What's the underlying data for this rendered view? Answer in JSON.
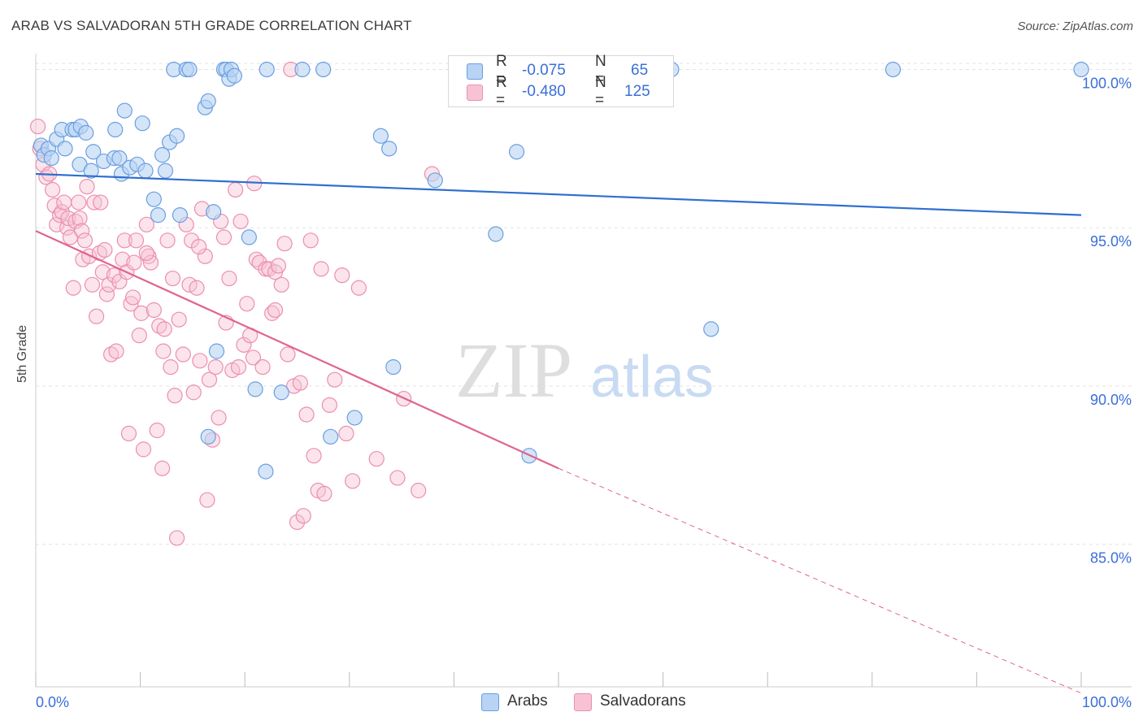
{
  "title": "ARAB VS SALVADORAN 5TH GRADE CORRELATION CHART",
  "source": "Source: ZipAtlas.com",
  "watermark": {
    "zip": "ZIP",
    "atlas": "atlas"
  },
  "colors": {
    "arabs": "#6b9ee0",
    "arabs_fill": "#b8d3f4",
    "arabs_line": "#2f6fd0",
    "salvadorans": "#ec8fad",
    "salvadorans_fill": "#f7c3d4",
    "salvadorans_line": "#e0648e",
    "tick_text": "#3a6fd8",
    "grid": "#e3e3e3"
  },
  "legend": {
    "r_label": "R =",
    "n_label": "N =",
    "rows": [
      {
        "r": "-0.075",
        "n": "65"
      },
      {
        "r": "-0.480",
        "n": "125"
      }
    ]
  },
  "bottom_legend": {
    "arabs": "Arabs",
    "salvadorans": "Salvadorans"
  },
  "chart_data": {
    "type": "scatter",
    "xlabel": "",
    "ylabel": "5th Grade",
    "xlim": [
      0,
      100
    ],
    "ylim": [
      80.5,
      100.5
    ],
    "x_tick_labels": {
      "min": "0.0%",
      "max": "100.0%"
    },
    "y_ticks": [
      85,
      90,
      95,
      100
    ],
    "y_tick_labels": [
      "85.0%",
      "90.0%",
      "95.0%",
      "100.0%"
    ],
    "grid": true,
    "series": [
      {
        "name": "Arabs",
        "r": -0.075,
        "n": 65,
        "trend": {
          "x0": 0,
          "y0": 96.7,
          "x1": 100,
          "y1": 95.4
        },
        "points": [
          [
            0.5,
            97.6
          ],
          [
            0.8,
            97.3
          ],
          [
            1.2,
            97.5
          ],
          [
            1.5,
            97.2
          ],
          [
            2,
            97.8
          ],
          [
            2.5,
            98.1
          ],
          [
            2.8,
            97.5
          ],
          [
            3.5,
            98.1
          ],
          [
            3.8,
            98.1
          ],
          [
            4.3,
            98.2
          ],
          [
            4.2,
            97.0
          ],
          [
            4.8,
            98.0
          ],
          [
            5.5,
            97.4
          ],
          [
            5.3,
            96.8
          ],
          [
            6.5,
            97.1
          ],
          [
            7.6,
            98.1
          ],
          [
            7.5,
            97.2
          ],
          [
            8,
            97.2
          ],
          [
            8.2,
            96.7
          ],
          [
            8.5,
            98.7
          ],
          [
            9,
            96.9
          ],
          [
            9.7,
            97.0
          ],
          [
            10.2,
            98.3
          ],
          [
            10.5,
            96.8
          ],
          [
            11.3,
            95.9
          ],
          [
            11.7,
            95.4
          ],
          [
            12.1,
            97.3
          ],
          [
            12.4,
            96.8
          ],
          [
            12.8,
            97.7
          ],
          [
            13.2,
            100.0
          ],
          [
            13.5,
            97.9
          ],
          [
            13.8,
            95.4
          ],
          [
            14.4,
            100.0
          ],
          [
            14.7,
            100.0
          ],
          [
            16.2,
            98.8
          ],
          [
            16.5,
            99.0
          ],
          [
            17,
            95.5
          ],
          [
            17.3,
            91.1
          ],
          [
            18,
            100.0
          ],
          [
            18.2,
            100.0
          ],
          [
            18.5,
            99.7
          ],
          [
            18.7,
            100.0
          ],
          [
            19,
            99.8
          ],
          [
            20.4,
            94.7
          ],
          [
            21,
            89.9
          ],
          [
            22.1,
            100.0
          ],
          [
            22,
            87.3
          ],
          [
            23.5,
            89.8
          ],
          [
            25.5,
            100.0
          ],
          [
            27.5,
            100.0
          ],
          [
            28.2,
            88.4
          ],
          [
            30.5,
            89.0
          ],
          [
            33,
            97.9
          ],
          [
            33.8,
            97.5
          ],
          [
            34.2,
            90.6
          ],
          [
            38.2,
            96.5
          ],
          [
            44,
            94.8
          ],
          [
            46,
            97.4
          ],
          [
            47.2,
            87.8
          ],
          [
            47.5,
            100.0
          ],
          [
            60.8,
            100.0
          ],
          [
            64.6,
            91.8
          ],
          [
            82,
            100.0
          ],
          [
            100,
            100.0
          ],
          [
            16.5,
            88.4
          ]
        ]
      },
      {
        "name": "Salvadorans",
        "r": -0.48,
        "n": 125,
        "trend": {
          "x0": 0,
          "y0": 94.9,
          "x1": 50,
          "y1": 87.4
        },
        "trend_extension": {
          "x0": 50,
          "y0": 87.4,
          "x1": 100,
          "y1": 80.3
        },
        "points": [
          [
            0.2,
            98.2
          ],
          [
            0.4,
            97.5
          ],
          [
            0.7,
            97.0
          ],
          [
            1,
            96.6
          ],
          [
            1.3,
            96.7
          ],
          [
            1.6,
            96.2
          ],
          [
            1.8,
            95.7
          ],
          [
            2,
            95.1
          ],
          [
            2.3,
            95.4
          ],
          [
            2.5,
            95.5
          ],
          [
            2.7,
            95.8
          ],
          [
            3,
            95.0
          ],
          [
            3.1,
            95.3
          ],
          [
            3.3,
            94.7
          ],
          [
            3.6,
            93.1
          ],
          [
            3.8,
            95.2
          ],
          [
            4.1,
            95.8
          ],
          [
            4.2,
            95.3
          ],
          [
            4.4,
            94.9
          ],
          [
            4.5,
            94.0
          ],
          [
            4.7,
            94.6
          ],
          [
            5.1,
            94.1
          ],
          [
            5.4,
            93.2
          ],
          [
            5.6,
            95.8
          ],
          [
            5.8,
            92.2
          ],
          [
            6.1,
            94.2
          ],
          [
            6.4,
            93.6
          ],
          [
            6.6,
            94.3
          ],
          [
            6.8,
            92.9
          ],
          [
            7,
            93.2
          ],
          [
            7.2,
            91.0
          ],
          [
            7.5,
            93.5
          ],
          [
            7.7,
            91.1
          ],
          [
            8,
            93.3
          ],
          [
            8.3,
            94.0
          ],
          [
            8.5,
            94.6
          ],
          [
            8.7,
            93.6
          ],
          [
            8.9,
            88.5
          ],
          [
            9.1,
            92.6
          ],
          [
            9.4,
            93.9
          ],
          [
            9.6,
            94.6
          ],
          [
            9.9,
            91.6
          ],
          [
            10.1,
            92.3
          ],
          [
            10.3,
            88.0
          ],
          [
            10.6,
            95.1
          ],
          [
            10.8,
            94.1
          ],
          [
            11,
            93.9
          ],
          [
            11.3,
            92.4
          ],
          [
            11.6,
            88.6
          ],
          [
            11.8,
            91.9
          ],
          [
            12.1,
            87.4
          ],
          [
            12.3,
            91.8
          ],
          [
            12.6,
            94.6
          ],
          [
            12.9,
            90.6
          ],
          [
            13.1,
            93.4
          ],
          [
            13.3,
            89.7
          ],
          [
            13.5,
            85.2
          ],
          [
            13.7,
            92.1
          ],
          [
            14.1,
            91.0
          ],
          [
            14.4,
            95.1
          ],
          [
            14.7,
            93.2
          ],
          [
            14.9,
            94.6
          ],
          [
            15.1,
            89.8
          ],
          [
            15.4,
            93.1
          ],
          [
            15.7,
            90.8
          ],
          [
            15.9,
            95.6
          ],
          [
            16.2,
            94.1
          ],
          [
            16.4,
            86.4
          ],
          [
            16.6,
            90.2
          ],
          [
            16.9,
            88.3
          ],
          [
            17.2,
            90.6
          ],
          [
            17.5,
            89.0
          ],
          [
            17.7,
            95.2
          ],
          [
            18,
            94.7
          ],
          [
            18.2,
            92.0
          ],
          [
            18.5,
            93.4
          ],
          [
            18.8,
            90.5
          ],
          [
            19.1,
            96.2
          ],
          [
            19.4,
            90.6
          ],
          [
            19.6,
            95.2
          ],
          [
            19.9,
            91.3
          ],
          [
            20.2,
            92.6
          ],
          [
            20.5,
            91.6
          ],
          [
            20.8,
            90.9
          ],
          [
            21.1,
            94.0
          ],
          [
            21.4,
            93.9
          ],
          [
            21.7,
            90.6
          ],
          [
            22,
            93.7
          ],
          [
            22.3,
            93.7
          ],
          [
            22.6,
            92.3
          ],
          [
            22.9,
            93.6
          ],
          [
            23.2,
            93.8
          ],
          [
            23.5,
            93.2
          ],
          [
            23.8,
            94.5
          ],
          [
            24.1,
            91.0
          ],
          [
            24.4,
            100.0
          ],
          [
            24.7,
            90.0
          ],
          [
            25,
            85.7
          ],
          [
            25.3,
            90.1
          ],
          [
            25.6,
            85.9
          ],
          [
            25.9,
            89.1
          ],
          [
            26.3,
            94.6
          ],
          [
            26.6,
            87.8
          ],
          [
            27,
            86.7
          ],
          [
            27.3,
            93.7
          ],
          [
            27.6,
            86.6
          ],
          [
            28.1,
            89.4
          ],
          [
            28.6,
            90.2
          ],
          [
            29.3,
            93.5
          ],
          [
            29.7,
            88.5
          ],
          [
            30.3,
            87.0
          ],
          [
            30.9,
            93.1
          ],
          [
            32.6,
            87.7
          ],
          [
            34.6,
            87.1
          ],
          [
            35.2,
            89.6
          ],
          [
            36.6,
            86.7
          ],
          [
            37.9,
            96.7
          ],
          [
            6.2,
            95.8
          ],
          [
            12.2,
            91.1
          ],
          [
            20.9,
            96.4
          ],
          [
            9.3,
            92.8
          ],
          [
            4.9,
            96.3
          ],
          [
            22.9,
            92.4
          ],
          [
            15.6,
            94.4
          ],
          [
            10.6,
            94.2
          ]
        ]
      }
    ]
  }
}
